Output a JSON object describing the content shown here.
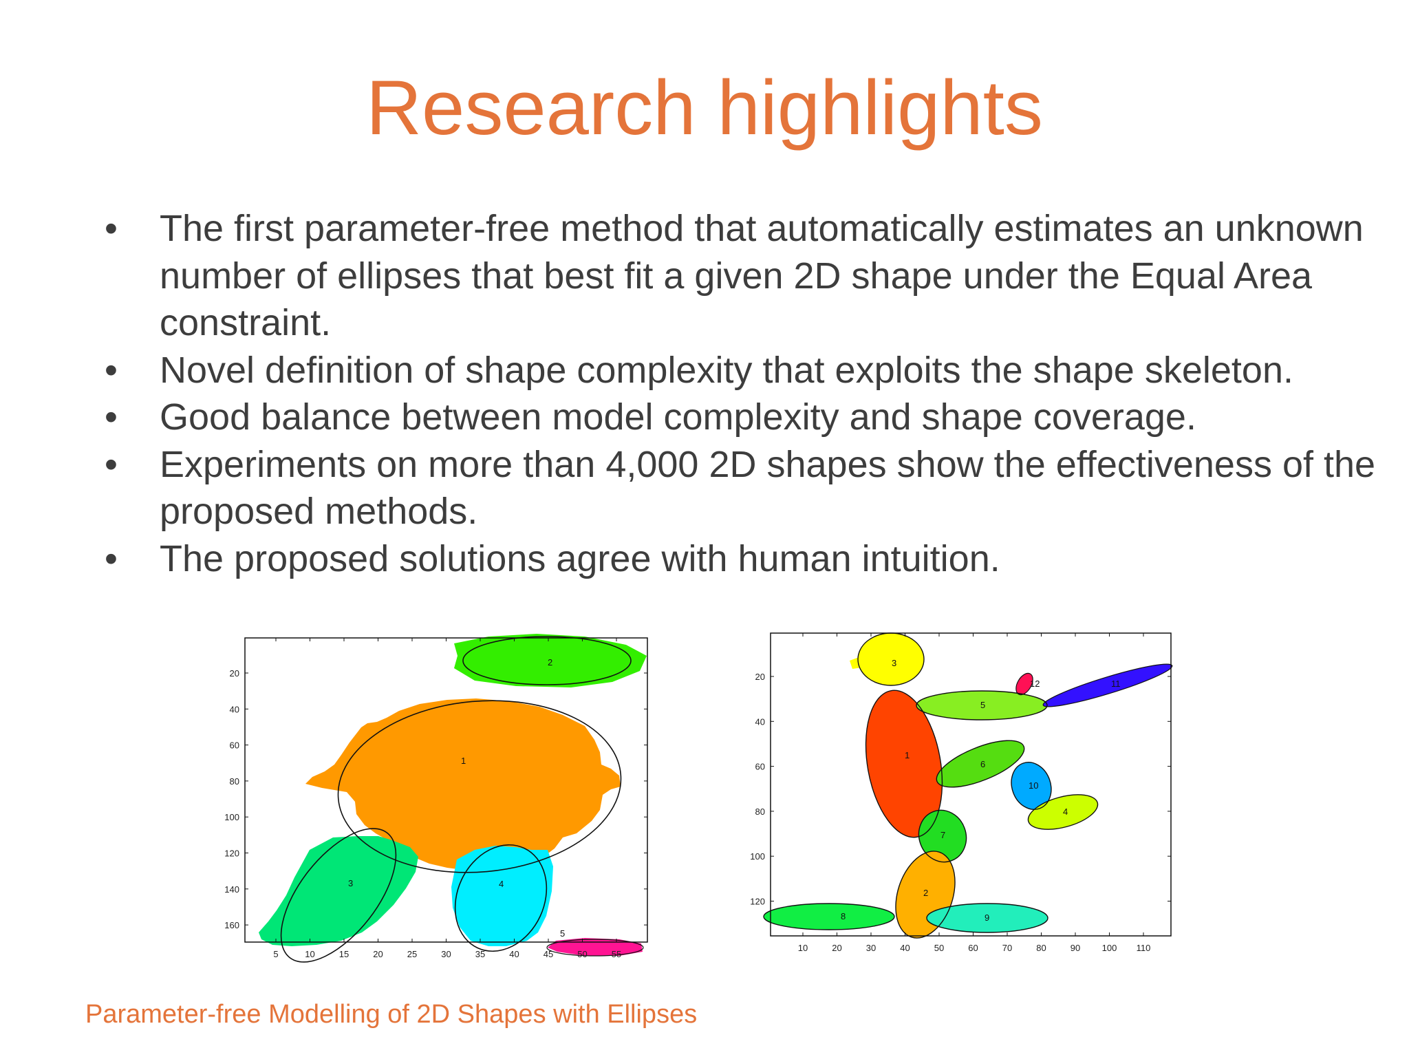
{
  "slide": {
    "title": "Research highlights",
    "bullets": [
      "The first parameter-free method that automatically estimates an unknown number of ellipses that best fit a given 2D shape under the Equal Area constraint.",
      "Novel definition of shape complexity that exploits the shape skeleton.",
      "Good balance between model complexity and shape coverage.",
      "Experiments on more than 4,000 2D shapes show the effectiveness of the proposed methods.",
      "The proposed solutions agree with human intuition."
    ],
    "footer": "Parameter-free Modelling of 2D Shapes with Ellipses"
  },
  "figure_left": {
    "x_ticks": [
      "5",
      "10",
      "15",
      "20",
      "25",
      "30",
      "35",
      "40",
      "45",
      "50",
      "55"
    ],
    "y_ticks": [
      "20",
      "40",
      "60",
      "80",
      "100",
      "120",
      "140",
      "160"
    ],
    "ellipse_labels": [
      "1",
      "2",
      "3",
      "4",
      "5"
    ],
    "colors": {
      "1": "#ff9900",
      "2": "#33ee00",
      "3": "#00e676",
      "4": "#00eeff",
      "5": "#ff1493"
    }
  },
  "figure_right": {
    "x_ticks": [
      "10",
      "20",
      "30",
      "40",
      "50",
      "60",
      "70",
      "80",
      "90",
      "100",
      "110"
    ],
    "y_ticks": [
      "20",
      "40",
      "60",
      "80",
      "100",
      "120"
    ],
    "ellipse_labels": [
      "1",
      "2",
      "3",
      "4",
      "5",
      "6",
      "7",
      "8",
      "9",
      "10",
      "11",
      "12"
    ],
    "colors": {
      "1": "#ff4400",
      "2": "#ffb000",
      "3": "#ffff00",
      "4": "#ccff00",
      "5": "#88ee22",
      "6": "#55dd11",
      "7": "#22dd22",
      "8": "#11ee44",
      "9": "#22eebb",
      "10": "#00aaff",
      "11": "#3311ff",
      "12": "#ff1155"
    }
  }
}
